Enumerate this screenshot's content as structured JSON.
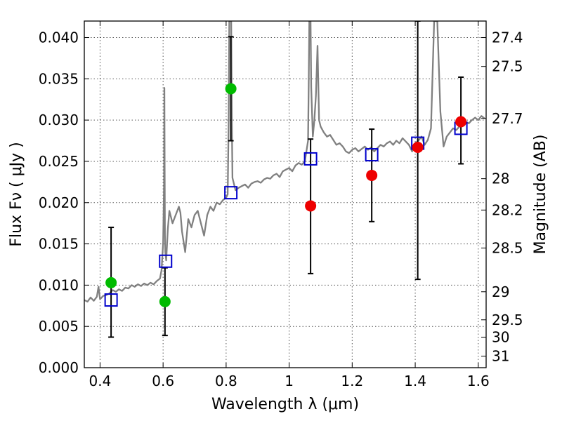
{
  "chart_data": {
    "type": "scatter",
    "title": "",
    "xlabel": "Wavelength  λ (μm)",
    "ylabel": "Flux  Fν  ( μJy )",
    "y2label": "Magnitude (AB)",
    "xlim": [
      0.35,
      1.625
    ],
    "ylim": [
      0.0,
      0.042
    ],
    "grid": true,
    "x_ticks": [
      0.4,
      0.6,
      0.8,
      1.0,
      1.2,
      1.4,
      1.6
    ],
    "x_tick_labels": [
      "0.4",
      "0.6",
      "0.8",
      "1",
      "1.2",
      "1.4",
      "1.6"
    ],
    "y_ticks": [
      0.0,
      0.005,
      0.01,
      0.015,
      0.02,
      0.025,
      0.03,
      0.035,
      0.04
    ],
    "y_tick_labels": [
      "0.000",
      "0.005",
      "0.010",
      "0.015",
      "0.020",
      "0.025",
      "0.030",
      "0.035",
      "0.040"
    ],
    "y2_ticks": [
      {
        "label": "27.4",
        "flux": 0.04
      },
      {
        "label": "27.5",
        "flux": 0.0365
      },
      {
        "label": "27.7",
        "flux": 0.0302
      },
      {
        "label": "28",
        "flux": 0.0229
      },
      {
        "label": "28.2",
        "flux": 0.0191
      },
      {
        "label": "28.5",
        "flux": 0.0145
      },
      {
        "label": "29",
        "flux": 0.0092
      },
      {
        "label": "29.5",
        "flux": 0.0058
      },
      {
        "label": "30",
        "flux": 0.0037
      },
      {
        "label": "31",
        "flux": 0.0014
      }
    ],
    "series": [
      {
        "kind": "spectrum",
        "color": "#808080",
        "x": [
          0.35,
          0.36,
          0.37,
          0.38,
          0.39,
          0.395,
          0.398,
          0.4,
          0.41,
          0.42,
          0.43,
          0.44,
          0.45,
          0.46,
          0.47,
          0.48,
          0.49,
          0.5,
          0.51,
          0.52,
          0.53,
          0.54,
          0.55,
          0.56,
          0.57,
          0.58,
          0.59,
          0.595,
          0.6,
          0.603,
          0.604,
          0.605,
          0.606,
          0.607,
          0.61,
          0.615,
          0.62,
          0.63,
          0.64,
          0.65,
          0.655,
          0.66,
          0.67,
          0.68,
          0.69,
          0.7,
          0.71,
          0.72,
          0.73,
          0.74,
          0.75,
          0.76,
          0.77,
          0.78,
          0.79,
          0.8,
          0.805,
          0.808,
          0.81,
          0.812,
          0.814,
          0.816,
          0.818,
          0.82,
          0.83,
          0.84,
          0.85,
          0.86,
          0.87,
          0.88,
          0.89,
          0.9,
          0.91,
          0.92,
          0.93,
          0.94,
          0.95,
          0.96,
          0.97,
          0.98,
          0.99,
          1.0,
          1.01,
          1.02,
          1.03,
          1.04,
          1.05,
          1.06,
          1.062,
          1.064,
          1.066,
          1.068,
          1.07,
          1.075,
          1.08,
          1.085,
          1.09,
          1.095,
          1.1,
          1.11,
          1.12,
          1.13,
          1.14,
          1.15,
          1.16,
          1.17,
          1.18,
          1.19,
          1.2,
          1.21,
          1.22,
          1.23,
          1.24,
          1.25,
          1.26,
          1.27,
          1.28,
          1.29,
          1.3,
          1.31,
          1.32,
          1.33,
          1.34,
          1.35,
          1.36,
          1.37,
          1.38,
          1.39,
          1.4,
          1.41,
          1.42,
          1.43,
          1.44,
          1.45,
          1.46,
          1.47,
          1.48,
          1.49,
          1.5,
          1.51,
          1.52,
          1.53,
          1.54,
          1.55,
          1.56,
          1.57,
          1.58,
          1.59,
          1.6,
          1.61,
          1.62
        ],
        "y": [
          0.0082,
          0.008,
          0.0085,
          0.0081,
          0.0086,
          0.0098,
          0.0089,
          0.0083,
          0.0087,
          0.0088,
          0.009,
          0.0094,
          0.0092,
          0.0095,
          0.0093,
          0.0097,
          0.0096,
          0.01,
          0.0098,
          0.0101,
          0.0099,
          0.0102,
          0.01,
          0.0103,
          0.0101,
          0.0105,
          0.0108,
          0.0118,
          0.015,
          0.022,
          0.0339,
          0.024,
          0.016,
          0.014,
          0.013,
          0.0168,
          0.019,
          0.0175,
          0.0185,
          0.0195,
          0.0188,
          0.0165,
          0.014,
          0.018,
          0.017,
          0.0185,
          0.019,
          0.0175,
          0.016,
          0.0185,
          0.0195,
          0.019,
          0.02,
          0.0198,
          0.0203,
          0.0206,
          0.021,
          0.03,
          0.042,
          0.042,
          0.042,
          0.042,
          0.03,
          0.023,
          0.0215,
          0.0218,
          0.022,
          0.0222,
          0.0218,
          0.0223,
          0.0225,
          0.0226,
          0.0224,
          0.0228,
          0.023,
          0.0229,
          0.0233,
          0.0235,
          0.0231,
          0.0238,
          0.024,
          0.0242,
          0.0238,
          0.0245,
          0.0248,
          0.0246,
          0.025,
          0.0275,
          0.034,
          0.042,
          0.042,
          0.042,
          0.034,
          0.028,
          0.03,
          0.033,
          0.039,
          0.03,
          0.0292,
          0.0285,
          0.028,
          0.0282,
          0.0276,
          0.027,
          0.0272,
          0.0268,
          0.0262,
          0.026,
          0.0264,
          0.0266,
          0.0262,
          0.0265,
          0.0268,
          0.0264,
          0.0267,
          0.0262,
          0.0266,
          0.027,
          0.0268,
          0.0272,
          0.0274,
          0.027,
          0.0275,
          0.0272,
          0.0278,
          0.0274,
          0.027,
          0.0262,
          0.0272,
          0.0275,
          0.028,
          0.027,
          0.0276,
          0.029,
          0.042,
          0.042,
          0.031,
          0.0268,
          0.028,
          0.0285,
          0.029,
          0.0288,
          0.0292,
          0.0295,
          0.0298,
          0.0296,
          0.03,
          0.0303,
          0.03,
          0.0305,
          0.0302
        ]
      },
      {
        "kind": "model-points",
        "name": "",
        "color": "#0000cc",
        "marker": "square-open",
        "x": [
          0.435,
          0.608,
          0.815,
          1.068,
          1.262,
          1.408,
          1.545
        ],
        "y": [
          0.0082,
          0.0129,
          0.0212,
          0.0253,
          0.0258,
          0.0272,
          0.029
        ]
      },
      {
        "kind": "detections",
        "name": "",
        "color": "#00bb00",
        "marker": "circle",
        "x": [
          0.435,
          0.606,
          0.815
        ],
        "y": [
          0.0103,
          0.008,
          0.0338
        ],
        "yerr_low": [
          0.0037,
          0.0039,
          0.0275
        ],
        "yerr_high": [
          0.017,
          0.0121,
          0.0401
        ]
      },
      {
        "kind": "detections",
        "name": "",
        "color": "#ee0000",
        "marker": "circle",
        "x": [
          1.068,
          1.262,
          1.408,
          1.545
        ],
        "y": [
          0.0196,
          0.0233,
          0.0267,
          0.0298
        ],
        "yerr_low": [
          0.0114,
          0.0177,
          0.0107,
          0.0247
        ],
        "yerr_high": [
          0.0277,
          0.0289,
          0.042,
          0.0352
        ]
      }
    ]
  }
}
